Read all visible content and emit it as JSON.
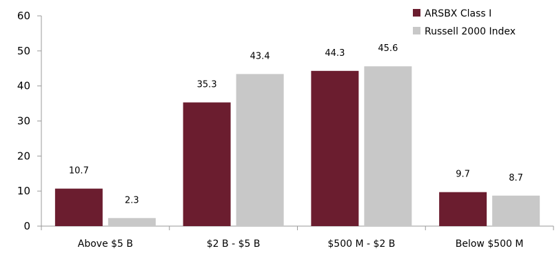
{
  "chart_data": {
    "type": "bar",
    "categories": [
      "Above $5 B",
      "$2 B - $5 B",
      "$500 M - $2 B",
      "Below $500 M"
    ],
    "series": [
      {
        "name": "ARSBX Class I",
        "color": "#6b1d2f",
        "values": [
          10.7,
          35.3,
          44.3,
          9.7
        ],
        "labels": [
          "10.7",
          "35.3",
          "44.3",
          "9.7"
        ]
      },
      {
        "name": "Russell 2000 Index",
        "color": "#c8c8c8",
        "values": [
          2.3,
          43.4,
          45.6,
          8.7
        ],
        "labels": [
          "2.3",
          "43.4",
          "45.6",
          "8.7"
        ]
      }
    ],
    "yticks": [
      "0",
      "10",
      "20",
      "30",
      "40",
      "50",
      "60"
    ],
    "ylim": [
      0,
      60
    ],
    "grid": false,
    "legend_position": "top-right",
    "axis_color": "#999999"
  }
}
